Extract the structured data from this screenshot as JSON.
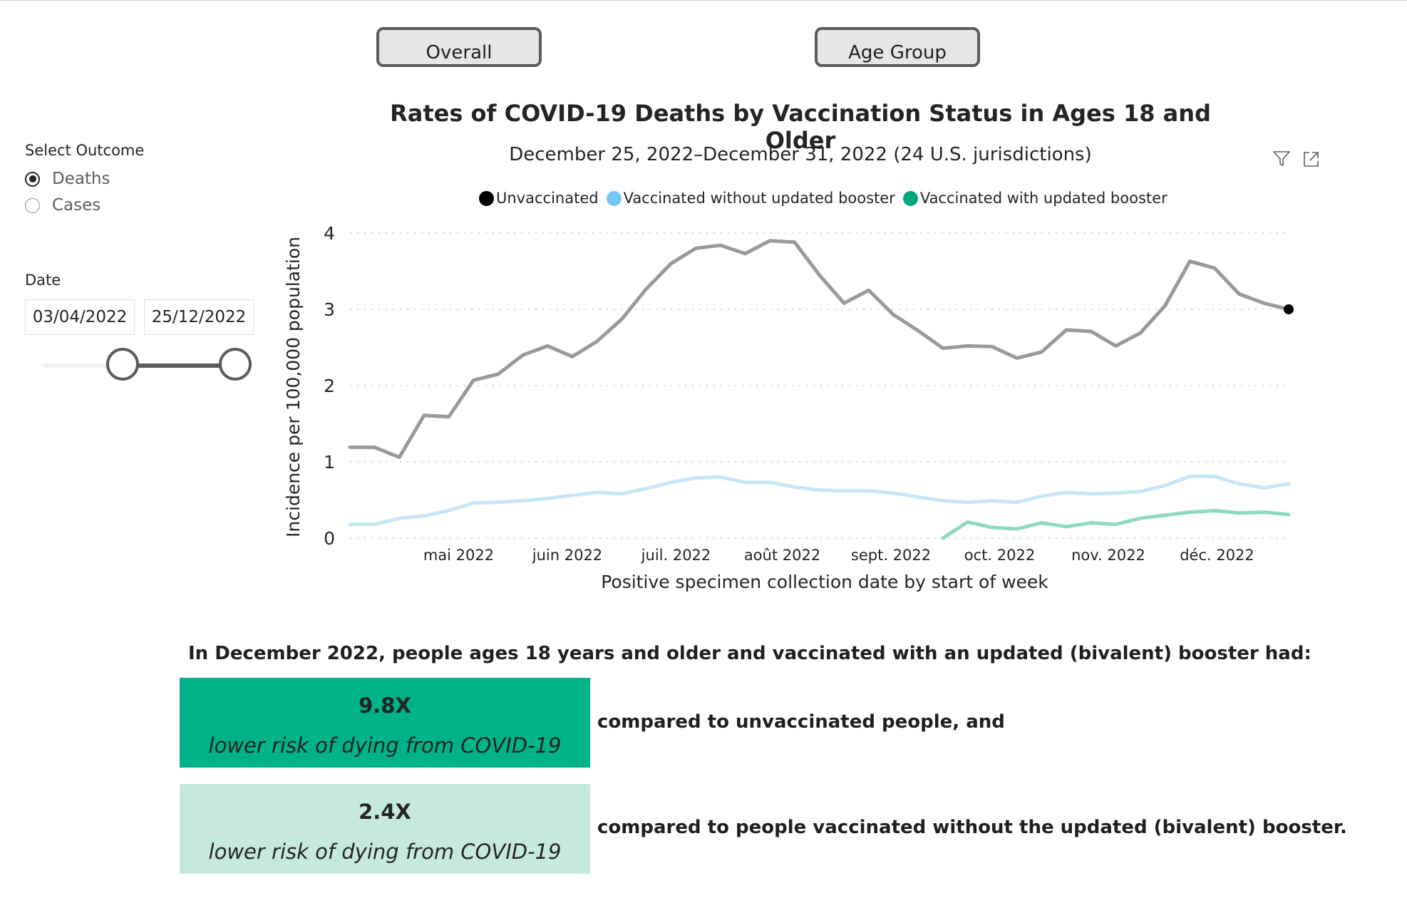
{
  "toggle_buttons": {
    "overall": "Overall",
    "age_group": "Age Group"
  },
  "outcome_slicer": {
    "title": "Select Outcome",
    "options": [
      {
        "label": "Deaths",
        "selected": true
      },
      {
        "label": "Cases",
        "selected": false
      }
    ]
  },
  "date_slicer": {
    "title": "Date",
    "start": "03/04/2022",
    "end": "25/12/2022",
    "selected_fraction": {
      "start": 0.45,
      "end": 1.0
    }
  },
  "visual_header_icons": [
    "filter-icon",
    "focus-mode-icon"
  ],
  "chart_data": {
    "type": "line",
    "title": "Rates of COVID-19 Deaths by Vaccination Status in Ages 18 and Older",
    "subtitle": "December 25, 2022–December 31, 2022 (24 U.S. jurisdictions)",
    "xlabel": "Positive specimen collection date by start of week",
    "ylabel": "Incidence per 100,000 population",
    "ylim": [
      0,
      4
    ],
    "yticks": [
      0,
      1,
      2,
      3,
      4
    ],
    "x_tick_labels": [
      "mai 2022",
      "juin 2022",
      "juil. 2022",
      "août 2022",
      "sept. 2022",
      "oct. 2022",
      "nov. 2022",
      "déc. 2022"
    ],
    "x_tick_weeks": [
      4.4,
      8.8,
      13.2,
      17.5,
      21.9,
      26.3,
      30.7,
      35.1
    ],
    "grid": true,
    "legend_position": "top",
    "series": [
      {
        "name": "Unvaccinated",
        "legend_color": "#000000",
        "line_color": "#999999",
        "start_week": 0,
        "values": [
          1.19,
          1.19,
          1.06,
          1.61,
          1.59,
          2.07,
          2.15,
          2.4,
          2.52,
          2.38,
          2.58,
          2.87,
          3.27,
          3.6,
          3.8,
          3.84,
          3.73,
          3.9,
          3.88,
          3.45,
          3.08,
          3.25,
          2.93,
          2.72,
          2.49,
          2.52,
          2.51,
          2.36,
          2.44,
          2.73,
          2.71,
          2.52,
          2.69,
          3.05,
          3.63,
          3.54,
          3.2,
          3.08,
          3.0
        ]
      },
      {
        "name": "Vaccinated without updated booster",
        "legend_color": "#76c7f5",
        "line_color": "#c8e6f7",
        "start_week": 0,
        "values": [
          0.18,
          0.18,
          0.26,
          0.29,
          0.36,
          0.46,
          0.47,
          0.49,
          0.52,
          0.56,
          0.6,
          0.58,
          0.65,
          0.73,
          0.79,
          0.8,
          0.73,
          0.73,
          0.67,
          0.63,
          0.62,
          0.62,
          0.59,
          0.54,
          0.49,
          0.47,
          0.49,
          0.47,
          0.55,
          0.6,
          0.58,
          0.59,
          0.61,
          0.69,
          0.81,
          0.81,
          0.71,
          0.66,
          0.71
        ]
      },
      {
        "name": "Vaccinated with updated booster",
        "legend_color": "#00a67e",
        "line_color": "#8fd9c0",
        "start_week": 24,
        "values": [
          0.0,
          0.21,
          0.14,
          0.12,
          0.2,
          0.15,
          0.2,
          0.18,
          0.26,
          0.3,
          0.34,
          0.36,
          0.33,
          0.34,
          0.31
        ]
      }
    ],
    "end_marker": {
      "series": "Unvaccinated",
      "value": 3.0
    }
  },
  "summary": {
    "heading": "In December 2022, people ages 18 years and older and vaccinated with an updated (bivalent) booster had:",
    "cards": [
      {
        "value": "9.8X",
        "text": "lower risk of dying from COVID-19",
        "comparison": "compared to unvaccinated people, and",
        "color": "#00b287"
      },
      {
        "value": "2.4X",
        "text": "lower risk of dying from COVID-19",
        "comparison": "compared to people vaccinated without the updated (bivalent) booster.",
        "color": "#c5e9de"
      }
    ]
  }
}
